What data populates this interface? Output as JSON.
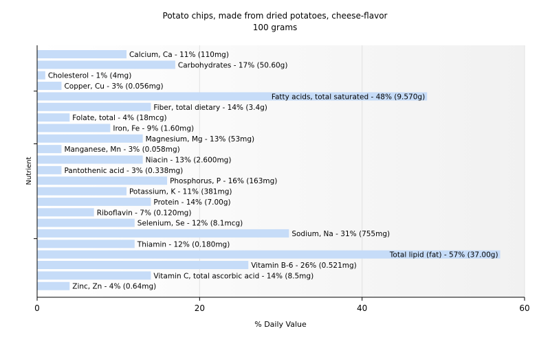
{
  "chart_data": {
    "type": "bar",
    "orientation": "horizontal",
    "title": "Potato chips, made from dried potatoes, cheese-flavor",
    "subtitle": "100 grams",
    "xlabel": "% Daily Value",
    "ylabel": "Nutrient",
    "xlim": [
      0,
      60
    ],
    "xticks": [
      0,
      20,
      40,
      60
    ],
    "grid": "vertical",
    "bar_color": "#c6dcf8",
    "categories": [
      "Calcium, Ca",
      "Carbohydrates",
      "Cholesterol",
      "Copper, Cu",
      "Fatty acids, total saturated",
      "Fiber, total dietary",
      "Folate, total",
      "Iron, Fe",
      "Magnesium, Mg",
      "Manganese, Mn",
      "Niacin",
      "Pantothenic acid",
      "Phosphorus, P",
      "Potassium, K",
      "Protein",
      "Riboflavin",
      "Selenium, Se",
      "Sodium, Na",
      "Thiamin",
      "Total lipid (fat)",
      "Vitamin B-6",
      "Vitamin C, total ascorbic acid",
      "Zinc, Zn"
    ],
    "values": [
      11,
      17,
      1,
      3,
      48,
      14,
      4,
      9,
      13,
      3,
      13,
      3,
      16,
      11,
      14,
      7,
      12,
      31,
      12,
      57,
      26,
      14,
      4
    ],
    "labels": [
      "Calcium, Ca - 11% (110mg)",
      "Carbohydrates - 17% (50.60g)",
      "Cholesterol - 1% (4mg)",
      "Copper, Cu - 3% (0.056mg)",
      "Fatty acids, total saturated - 48% (9.570g)",
      "Fiber, total dietary - 14% (3.4g)",
      "Folate, total - 4% (18mcg)",
      "Iron, Fe - 9% (1.60mg)",
      "Magnesium, Mg - 13% (53mg)",
      "Manganese, Mn - 3% (0.058mg)",
      "Niacin - 13% (2.600mg)",
      "Pantothenic acid - 3% (0.338mg)",
      "Phosphorus, P - 16% (163mg)",
      "Potassium, K - 11% (381mg)",
      "Protein - 14% (7.00g)",
      "Riboflavin - 7% (0.120mg)",
      "Selenium, Se - 12% (8.1mcg)",
      "Sodium, Na - 31% (755mg)",
      "Thiamin - 12% (0.180mg)",
      "Total lipid (fat) - 57% (37.00g)",
      "Vitamin B-6 - 26% (0.521mg)",
      "Vitamin C, total ascorbic acid - 14% (8.5mg)",
      "Zinc, Zn - 4% (0.64mg)"
    ]
  }
}
